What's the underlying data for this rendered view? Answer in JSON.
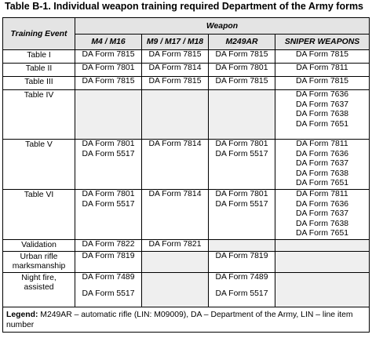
{
  "title": "Table B-1. Individual weapon training required Department of the Army forms",
  "header": {
    "training_event": "Training Event",
    "weapon": "Weapon",
    "columns": [
      "M4 / M16",
      "M9 / M17 / M18",
      "M249AR",
      "SNIPER WEAPONS"
    ]
  },
  "rows": [
    {
      "event": [
        "Table I"
      ],
      "cells": [
        [
          "DA Form 7815"
        ],
        [
          "DA Form 7815"
        ],
        [
          "DA Form 7815"
        ],
        [
          "DA Form 7815"
        ]
      ]
    },
    {
      "event": [
        "Table II"
      ],
      "cells": [
        [
          "DA Form 7801"
        ],
        [
          "DA Form 7814"
        ],
        [
          "DA Form 7801"
        ],
        [
          "DA Form 7811"
        ]
      ]
    },
    {
      "event": [
        "Table III"
      ],
      "cells": [
        [
          "DA Form 7815"
        ],
        [
          "DA Form 7815"
        ],
        [
          "DA Form 7815"
        ],
        [
          "DA Form 7815"
        ]
      ]
    },
    {
      "event": [
        "Table IV"
      ],
      "cells": [
        [],
        [],
        [],
        [
          "DA Form 7636",
          "DA Form 7637",
          "DA Form 7638",
          "DA Form 7651"
        ]
      ]
    },
    {
      "event": [
        "Table V"
      ],
      "cells": [
        [
          "DA Form 7801",
          "DA Form 5517"
        ],
        [
          "DA Form 7814"
        ],
        [
          "DA Form 7801",
          "DA Form 5517"
        ],
        [
          "DA Form 7811",
          "DA Form 7636",
          "DA Form 7637",
          "DA Form 7638",
          "DA Form 7651"
        ]
      ]
    },
    {
      "event": [
        "Table VI"
      ],
      "cells": [
        [
          "DA Form 7801",
          "DA Form 5517"
        ],
        [
          "DA Form 7814"
        ],
        [
          "DA Form 7801",
          "DA Form 5517"
        ],
        [
          "DA Form 7811",
          "DA Form 7636",
          "DA Form 7637",
          "DA Form 7638",
          "DA Form 7651"
        ]
      ]
    },
    {
      "event": [
        "Validation"
      ],
      "cells": [
        [
          "DA Form 7822"
        ],
        [
          "DA Form 7821"
        ],
        [],
        []
      ]
    },
    {
      "event": [
        "Urban rifle",
        "marksmanship"
      ],
      "cells": [
        [
          "DA Form 7819"
        ],
        [],
        [
          "DA Form 7819"
        ],
        []
      ]
    },
    {
      "event": [
        "Night fire,",
        "assisted"
      ],
      "cells": [
        [
          "DA Form 7489",
          "DA Form 5517"
        ],
        [],
        [
          "DA Form 7489",
          "DA Form 5517"
        ],
        []
      ]
    }
  ],
  "legend": {
    "label": "Legend:",
    "text": "M249AR – automatic rifle (LIN: M09009), DA – Department of the Army, LIN – line item number"
  }
}
